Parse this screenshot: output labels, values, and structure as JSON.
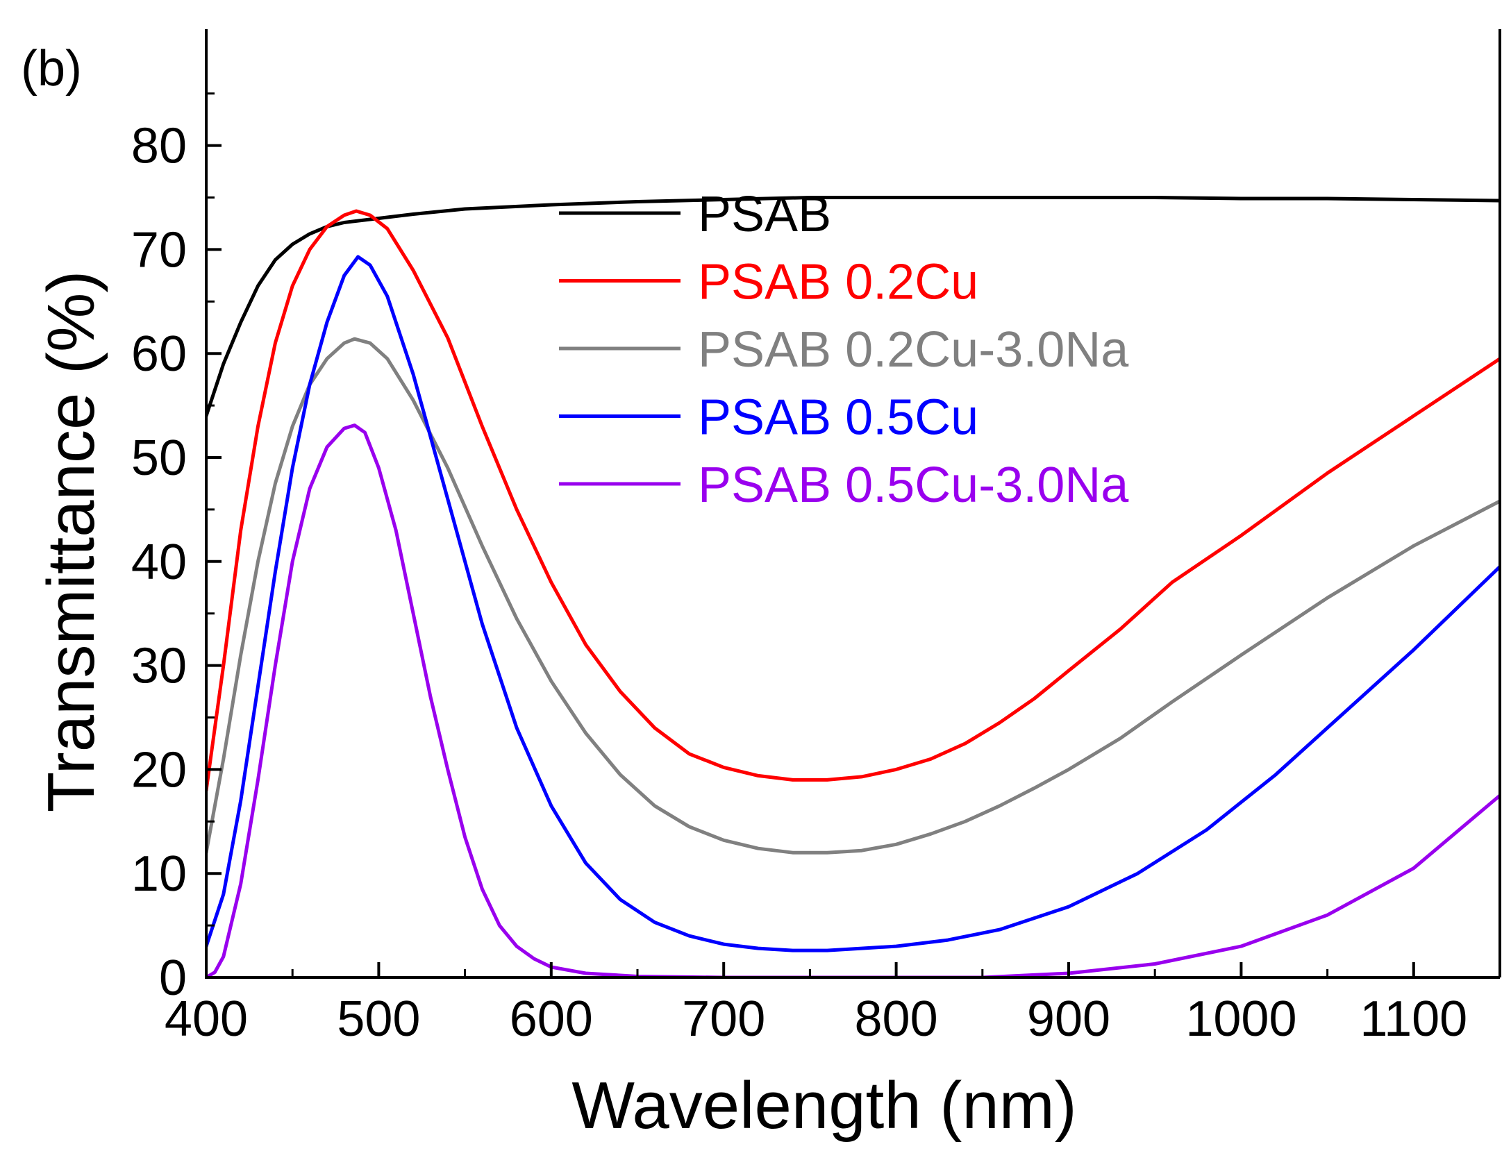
{
  "chart_data": {
    "type": "line",
    "panel_label": "(b)",
    "title": "",
    "xlabel": "Wavelength (nm)",
    "ylabel": "Transmittance (%)",
    "xlim": [
      400,
      1150
    ],
    "ylim": [
      0,
      87
    ],
    "x_ticks": [
      400,
      500,
      600,
      700,
      800,
      900,
      1000,
      1100
    ],
    "y_ticks": [
      0,
      10,
      20,
      30,
      40,
      50,
      60,
      70,
      80
    ],
    "grid": false,
    "legend_position": "top-right",
    "series": [
      {
        "name": "PSAB",
        "color": "#000000",
        "points": [
          [
            400,
            54
          ],
          [
            410,
            59
          ],
          [
            420,
            63
          ],
          [
            430,
            66.5
          ],
          [
            440,
            69
          ],
          [
            450,
            70.5
          ],
          [
            460,
            71.5
          ],
          [
            470,
            72.2
          ],
          [
            480,
            72.6
          ],
          [
            490,
            72.8
          ],
          [
            500,
            73
          ],
          [
            520,
            73.4
          ],
          [
            550,
            73.9
          ],
          [
            600,
            74.3
          ],
          [
            650,
            74.6
          ],
          [
            700,
            74.8
          ],
          [
            750,
            75
          ],
          [
            800,
            75
          ],
          [
            850,
            75
          ],
          [
            900,
            75
          ],
          [
            950,
            75
          ],
          [
            1000,
            74.9
          ],
          [
            1050,
            74.9
          ],
          [
            1100,
            74.8
          ],
          [
            1150,
            74.7
          ]
        ]
      },
      {
        "name": "PSAB 0.2Cu",
        "color": "#ff0000",
        "points": [
          [
            400,
            18
          ],
          [
            410,
            30
          ],
          [
            420,
            43
          ],
          [
            430,
            53
          ],
          [
            440,
            61
          ],
          [
            450,
            66.5
          ],
          [
            460,
            70
          ],
          [
            470,
            72.2
          ],
          [
            480,
            73.3
          ],
          [
            487,
            73.7
          ],
          [
            495,
            73.3
          ],
          [
            505,
            72
          ],
          [
            520,
            68
          ],
          [
            540,
            61.5
          ],
          [
            560,
            53
          ],
          [
            580,
            45
          ],
          [
            600,
            38
          ],
          [
            620,
            32
          ],
          [
            640,
            27.5
          ],
          [
            660,
            24
          ],
          [
            680,
            21.5
          ],
          [
            700,
            20.2
          ],
          [
            720,
            19.4
          ],
          [
            740,
            19
          ],
          [
            760,
            19
          ],
          [
            780,
            19.3
          ],
          [
            800,
            20
          ],
          [
            820,
            21
          ],
          [
            840,
            22.5
          ],
          [
            860,
            24.5
          ],
          [
            880,
            26.8
          ],
          [
            900,
            29.5
          ],
          [
            930,
            33.5
          ],
          [
            960,
            38
          ],
          [
            1000,
            42.5
          ],
          [
            1050,
            48.5
          ],
          [
            1100,
            54
          ],
          [
            1150,
            59.5
          ]
        ]
      },
      {
        "name": "PSAB 0.2Cu-3.0Na",
        "color": "#808080",
        "points": [
          [
            400,
            12
          ],
          [
            410,
            21
          ],
          [
            420,
            31
          ],
          [
            430,
            40
          ],
          [
            440,
            47.5
          ],
          [
            450,
            53
          ],
          [
            460,
            57
          ],
          [
            470,
            59.5
          ],
          [
            480,
            61
          ],
          [
            486,
            61.4
          ],
          [
            495,
            61
          ],
          [
            505,
            59.5
          ],
          [
            520,
            55.5
          ],
          [
            540,
            49
          ],
          [
            560,
            41.5
          ],
          [
            580,
            34.5
          ],
          [
            600,
            28.5
          ],
          [
            620,
            23.5
          ],
          [
            640,
            19.5
          ],
          [
            660,
            16.5
          ],
          [
            680,
            14.5
          ],
          [
            700,
            13.2
          ],
          [
            720,
            12.4
          ],
          [
            740,
            12
          ],
          [
            760,
            12
          ],
          [
            780,
            12.2
          ],
          [
            800,
            12.8
          ],
          [
            820,
            13.8
          ],
          [
            840,
            15
          ],
          [
            860,
            16.5
          ],
          [
            880,
            18.2
          ],
          [
            900,
            20
          ],
          [
            930,
            23
          ],
          [
            960,
            26.5
          ],
          [
            1000,
            31
          ],
          [
            1050,
            36.5
          ],
          [
            1100,
            41.5
          ],
          [
            1150,
            45.8
          ]
        ]
      },
      {
        "name": "PSAB 0.5Cu",
        "color": "#0000ff",
        "points": [
          [
            400,
            3
          ],
          [
            410,
            8
          ],
          [
            420,
            17
          ],
          [
            430,
            28
          ],
          [
            440,
            39
          ],
          [
            450,
            49
          ],
          [
            460,
            57
          ],
          [
            470,
            63
          ],
          [
            480,
            67.5
          ],
          [
            488,
            69.3
          ],
          [
            495,
            68.5
          ],
          [
            505,
            65.5
          ],
          [
            520,
            58
          ],
          [
            540,
            46
          ],
          [
            560,
            34
          ],
          [
            580,
            24
          ],
          [
            600,
            16.5
          ],
          [
            620,
            11
          ],
          [
            640,
            7.5
          ],
          [
            660,
            5.3
          ],
          [
            680,
            4
          ],
          [
            700,
            3.2
          ],
          [
            720,
            2.8
          ],
          [
            740,
            2.6
          ],
          [
            760,
            2.6
          ],
          [
            780,
            2.8
          ],
          [
            800,
            3
          ],
          [
            830,
            3.6
          ],
          [
            860,
            4.6
          ],
          [
            900,
            6.8
          ],
          [
            940,
            10
          ],
          [
            980,
            14.2
          ],
          [
            1020,
            19.5
          ],
          [
            1060,
            25.5
          ],
          [
            1100,
            31.5
          ],
          [
            1150,
            39.5
          ]
        ]
      },
      {
        "name": "PSAB 0.5Cu-3.0Na",
        "color": "#9900ee",
        "points": [
          [
            400,
            0
          ],
          [
            405,
            0.5
          ],
          [
            410,
            2
          ],
          [
            420,
            9
          ],
          [
            430,
            19
          ],
          [
            440,
            30
          ],
          [
            450,
            40
          ],
          [
            460,
            47
          ],
          [
            470,
            51
          ],
          [
            480,
            52.8
          ],
          [
            486,
            53.1
          ],
          [
            492,
            52.4
          ],
          [
            500,
            49
          ],
          [
            510,
            43
          ],
          [
            520,
            35
          ],
          [
            530,
            27
          ],
          [
            540,
            20
          ],
          [
            550,
            13.5
          ],
          [
            560,
            8.5
          ],
          [
            570,
            5
          ],
          [
            580,
            3
          ],
          [
            590,
            1.8
          ],
          [
            600,
            1
          ],
          [
            620,
            0.4
          ],
          [
            650,
            0.1
          ],
          [
            700,
            0
          ],
          [
            750,
            0
          ],
          [
            800,
            0
          ],
          [
            850,
            0
          ],
          [
            900,
            0.4
          ],
          [
            950,
            1.3
          ],
          [
            1000,
            3
          ],
          [
            1050,
            6
          ],
          [
            1100,
            10.5
          ],
          [
            1150,
            17.5
          ]
        ]
      }
    ]
  }
}
